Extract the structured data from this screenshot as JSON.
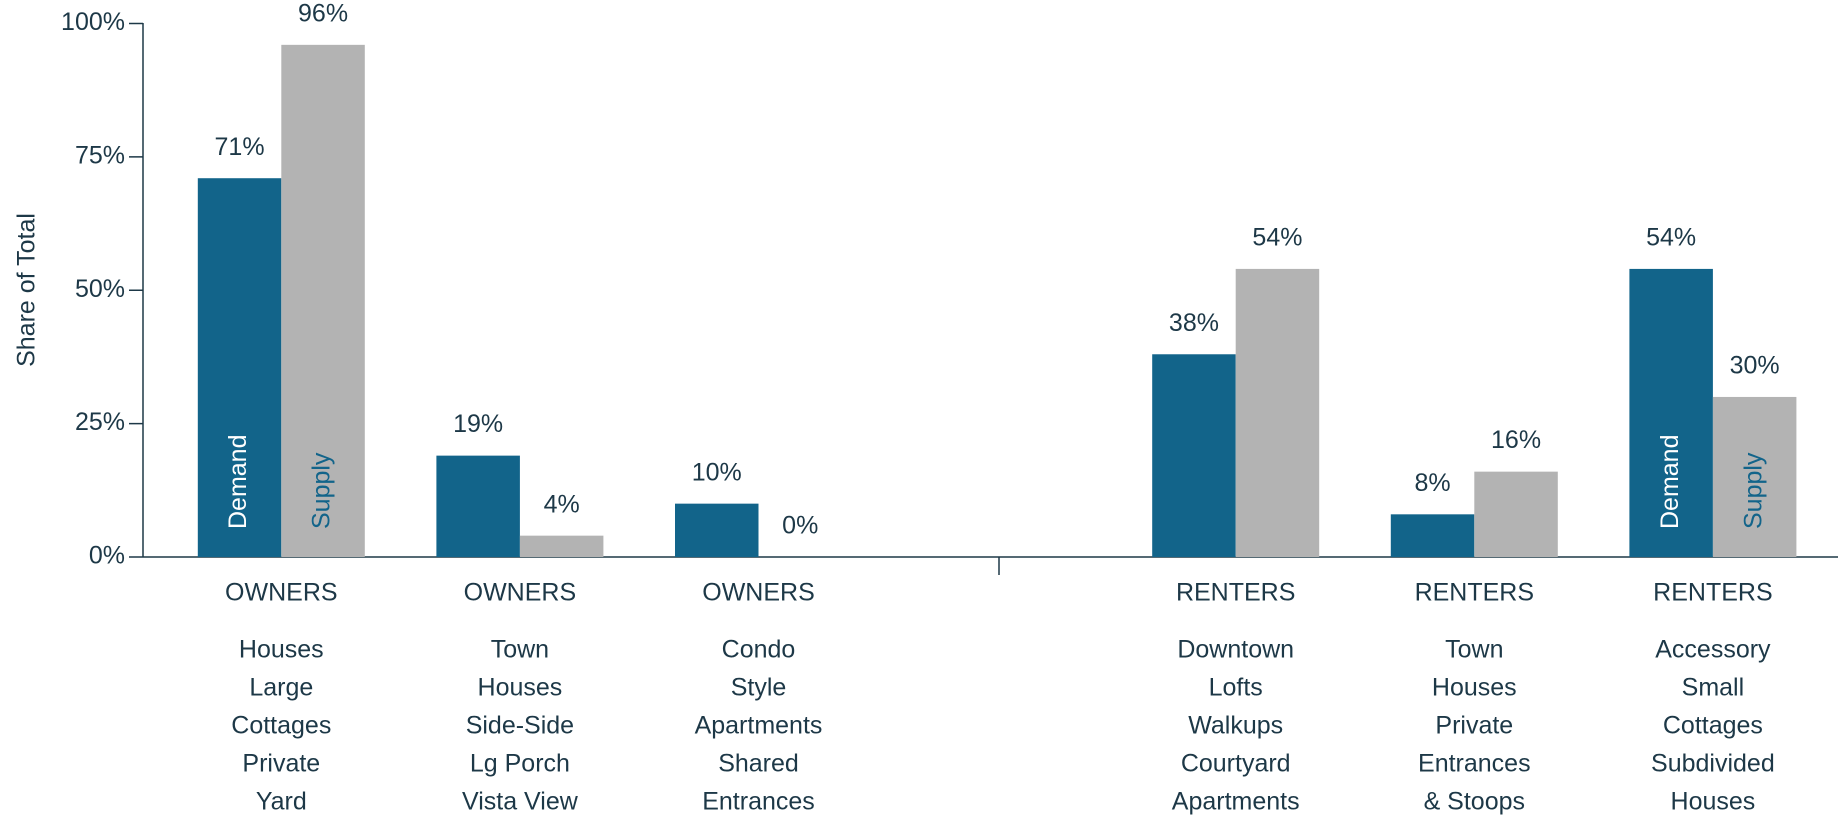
{
  "chart_data": {
    "type": "bar",
    "y_label": "Share of Total",
    "categories": [
      "OWNERS",
      "OWNERS",
      "OWNERS",
      null,
      "RENTERS",
      "RENTERS",
      "RENTERS"
    ],
    "descriptions": [
      [
        "Houses",
        "Large",
        "Cottages",
        "Private",
        "Yard"
      ],
      [
        "Town",
        "Houses",
        "Side-Side",
        "Lg Porch",
        "Vista View"
      ],
      [
        "Condo",
        "Style",
        "Apartments",
        "Shared",
        "Entrances"
      ],
      null,
      [
        "Downtown",
        "Lofts",
        "Walkups",
        "Courtyard",
        "Apartments"
      ],
      [
        "Town",
        "Houses",
        "Private",
        "Entrances",
        "& Stoops"
      ],
      [
        "Accessory",
        "Small",
        "Cottages",
        "Subdivided",
        "Houses"
      ]
    ],
    "series": [
      {
        "name": "Demand",
        "color": "#12648a",
        "values": [
          71,
          19,
          10,
          null,
          38,
          8,
          54
        ],
        "value_labels": [
          "71%",
          "19%",
          "10%",
          null,
          "38%",
          "8%",
          "54%"
        ]
      },
      {
        "name": "Supply",
        "color": "#b3b3b3",
        "values": [
          96,
          4,
          0,
          null,
          54,
          16,
          30
        ],
        "value_labels": [
          "96%",
          "4%",
          "0%",
          null,
          "54%",
          "16%",
          "30%"
        ]
      }
    ],
    "ylim": [
      0,
      100
    ],
    "yticks": [
      {
        "value": 0,
        "label": "0%"
      },
      {
        "value": 25,
        "label": "25%"
      },
      {
        "value": 50,
        "label": "50%"
      },
      {
        "value": 75,
        "label": "75%"
      },
      {
        "value": 100,
        "label": "100%"
      }
    ]
  }
}
